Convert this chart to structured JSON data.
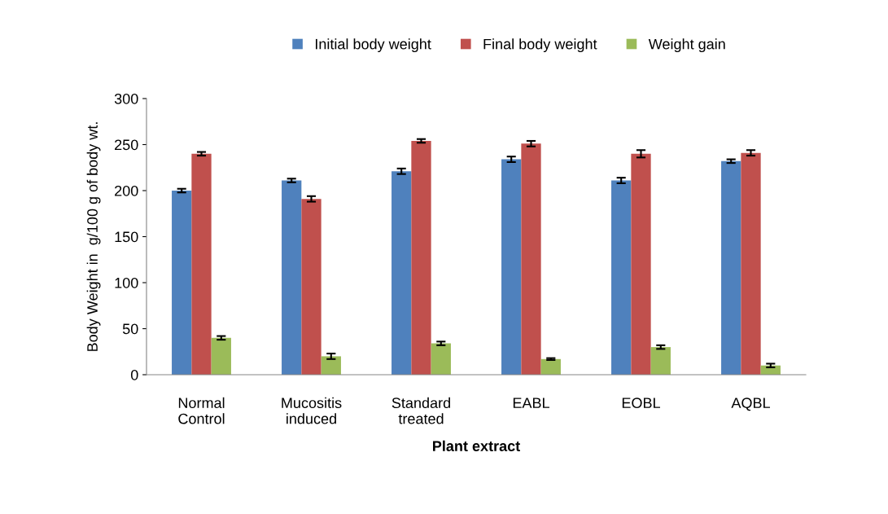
{
  "chart_data": {
    "type": "bar",
    "xlabel": "Plant extract",
    "ylabel": "Body Weight in  g/100 g of body wt.",
    "categories": [
      "Normal\nControl",
      "Mucositis\ninduced",
      "Standard\ntreated",
      "EABL",
      "EOBL",
      "AQBL"
    ],
    "series": [
      {
        "name": "Initial body weight",
        "color": "#4f81bd",
        "values": [
          200,
          211,
          221,
          234,
          211,
          232
        ],
        "errors": [
          2,
          2,
          3,
          3,
          3,
          2
        ]
      },
      {
        "name": "Final body weight",
        "color": "#c0504d",
        "values": [
          240,
          191,
          254,
          251,
          240,
          241
        ],
        "errors": [
          2,
          3,
          2,
          3,
          4,
          3
        ]
      },
      {
        "name": "Weight gain",
        "color": "#9bbb59",
        "values": [
          40,
          20,
          34,
          17,
          30,
          10
        ],
        "errors": [
          2,
          3,
          2,
          1,
          2,
          2
        ]
      }
    ],
    "ylim": [
      0,
      300
    ],
    "yticks": [
      0,
      50,
      100,
      150,
      200,
      250,
      300
    ],
    "grid": false,
    "legend": "top"
  }
}
